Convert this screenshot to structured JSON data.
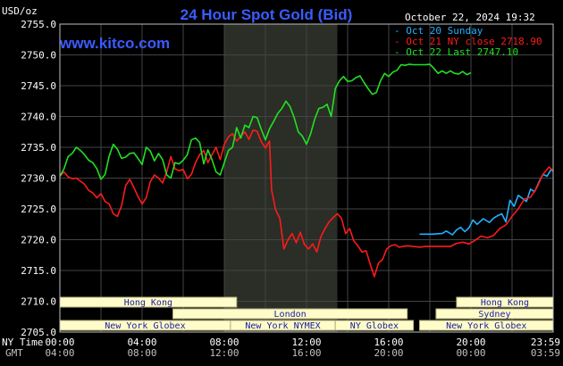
{
  "chart_data": {
    "type": "line",
    "title": "24 Hour Spot Gold (Bid)",
    "watermark": "www.kitco.com",
    "timestamp": "October 22, 2024 19:32",
    "yunit": "USD/oz",
    "ylim": [
      2705,
      2755
    ],
    "yticks": [
      "2755.0",
      "2750.0",
      "2745.0",
      "2740.0",
      "2735.0",
      "2730.0",
      "2725.0",
      "2720.0",
      "2715.0",
      "2710.0",
      "2705.0"
    ],
    "xlim": [
      0,
      24
    ],
    "xtick_hours": [
      0,
      4,
      8,
      12,
      16,
      20,
      24
    ],
    "xticks_ny": [
      "00:00",
      "04:00",
      "08:00",
      "12:00",
      "16:00",
      "20:00",
      "23:59"
    ],
    "xticks_gmt": [
      "04:00",
      "08:00",
      "12:00",
      "16:00",
      "20:00",
      "00:00",
      "03:59"
    ],
    "row_label_ny": "NY Time",
    "row_label_gmt": "GMT",
    "highlight_range": [
      8,
      13.5
    ],
    "grid": true,
    "legend_position": "top-right",
    "colors": {
      "background": "#000000",
      "grid": "#444444",
      "axis": "#c0c0c0",
      "text": "#ffffff",
      "title": "#3a5cff",
      "watermark": "#3a5cff",
      "shade": "#2a2e26",
      "session_fill": "#fefcc8",
      "session_text": "#1a1aa0"
    },
    "series": [
      {
        "name": "Oct 20 Sunday",
        "color": "#22b0ff",
        "x": [
          17.5,
          18.1,
          18.6,
          18.8,
          19.1,
          19.3,
          19.5,
          19.7,
          19.9,
          20.1,
          20.3,
          20.6,
          20.9,
          21.1,
          21.3,
          21.5,
          21.7,
          21.9,
          22.1,
          22.3,
          22.5,
          22.7,
          22.9,
          23.1,
          23.3,
          23.5,
          23.7,
          23.9,
          24.0
        ],
        "values": [
          2720.9,
          2720.9,
          2721.0,
          2721.4,
          2720.8,
          2721.6,
          2722.0,
          2721.3,
          2721.9,
          2723.2,
          2722.5,
          2723.4,
          2722.8,
          2723.5,
          2723.9,
          2724.2,
          2722.9,
          2726.4,
          2725.4,
          2727.2,
          2726.7,
          2726.2,
          2728.2,
          2727.8,
          2729.3,
          2730.6,
          2730.3,
          2731.4,
          2731.1
        ]
      },
      {
        "name": "Oct 21 NY close 2718.90",
        "color": "#ff1a1a",
        "x": [
          0.0,
          0.2,
          0.4,
          0.6,
          0.8,
          1.0,
          1.2,
          1.4,
          1.6,
          1.8,
          2.0,
          2.2,
          2.4,
          2.6,
          2.8,
          3.0,
          3.2,
          3.4,
          3.6,
          3.8,
          4.0,
          4.2,
          4.4,
          4.6,
          4.8,
          5.0,
          5.2,
          5.4,
          5.6,
          5.8,
          6.0,
          6.2,
          6.4,
          6.6,
          6.8,
          7.0,
          7.2,
          7.4,
          7.6,
          7.8,
          8.0,
          8.2,
          8.4,
          8.6,
          8.8,
          9.0,
          9.2,
          9.4,
          9.6,
          9.8,
          10.0,
          10.2,
          10.3,
          10.5,
          10.7,
          10.9,
          11.1,
          11.3,
          11.5,
          11.7,
          11.9,
          12.1,
          12.3,
          12.5,
          12.7,
          12.9,
          13.1,
          13.3,
          13.5,
          13.7,
          13.9,
          14.1,
          14.3,
          14.5,
          14.7,
          14.9,
          15.1,
          15.3,
          15.5,
          15.7,
          15.9,
          16.1,
          16.3,
          16.5,
          16.7,
          16.9,
          17.2,
          17.5,
          17.8,
          18.1,
          18.4,
          18.7,
          19.0,
          19.3,
          19.6,
          19.9,
          20.2,
          20.5,
          20.8,
          21.1,
          21.4,
          21.7,
          22.0,
          22.3,
          22.6,
          22.9,
          23.2,
          23.5,
          23.8,
          24.0
        ],
        "values": [
          2730.3,
          2731.0,
          2730.2,
          2729.9,
          2730.0,
          2729.5,
          2729.0,
          2728.0,
          2727.6,
          2726.8,
          2727.5,
          2726.2,
          2725.8,
          2724.2,
          2723.8,
          2725.5,
          2728.8,
          2729.8,
          2728.5,
          2727.0,
          2725.8,
          2726.8,
          2729.4,
          2730.5,
          2730.0,
          2729.2,
          2731.0,
          2733.5,
          2731.5,
          2731.2,
          2731.4,
          2729.9,
          2730.6,
          2732.5,
          2733.8,
          2734.5,
          2732.5,
          2733.8,
          2735.0,
          2733.0,
          2735.5,
          2736.7,
          2737.2,
          2736.0,
          2736.8,
          2737.5,
          2736.3,
          2737.8,
          2737.6,
          2735.9,
          2734.9,
          2736.0,
          2728.1,
          2724.8,
          2723.5,
          2718.5,
          2720.0,
          2721.0,
          2719.5,
          2721.2,
          2719.2,
          2718.5,
          2719.3,
          2718.0,
          2720.5,
          2721.8,
          2722.9,
          2723.6,
          2724.2,
          2723.5,
          2721.0,
          2721.8,
          2719.8,
          2719.0,
          2718.0,
          2718.2,
          2716.0,
          2714.0,
          2716.2,
          2716.8,
          2718.5,
          2719.0,
          2719.2,
          2718.8,
          2718.9,
          2719.0,
          2718.9,
          2718.8,
          2718.9,
          2718.9,
          2718.9,
          2718.9,
          2718.9,
          2719.4,
          2719.6,
          2719.3,
          2719.9,
          2720.6,
          2720.3,
          2720.7,
          2721.8,
          2722.4,
          2723.8,
          2725.0,
          2726.6,
          2726.9,
          2728.4,
          2730.6,
          2731.8,
          2731.2
        ]
      },
      {
        "name": "Oct 22 Last 2747.10",
        "color": "#22e022",
        "x": [
          0.0,
          0.2,
          0.4,
          0.6,
          0.8,
          1.0,
          1.2,
          1.4,
          1.6,
          1.8,
          2.0,
          2.2,
          2.4,
          2.6,
          2.8,
          3.0,
          3.2,
          3.4,
          3.6,
          3.8,
          4.0,
          4.2,
          4.4,
          4.6,
          4.8,
          5.0,
          5.2,
          5.4,
          5.6,
          5.8,
          6.0,
          6.2,
          6.4,
          6.6,
          6.8,
          7.0,
          7.2,
          7.4,
          7.6,
          7.8,
          8.0,
          8.2,
          8.4,
          8.6,
          8.8,
          9.0,
          9.2,
          9.4,
          9.6,
          9.8,
          10.0,
          10.2,
          10.4,
          10.6,
          10.8,
          11.0,
          11.2,
          11.4,
          11.6,
          11.8,
          12.0,
          12.2,
          12.4,
          12.6,
          12.8,
          13.0,
          13.2,
          13.4,
          13.6,
          13.8,
          14.0,
          14.2,
          14.4,
          14.6,
          14.8,
          15.0,
          15.2,
          15.4,
          15.6,
          15.8,
          16.0,
          16.2,
          16.4,
          16.6,
          16.8,
          17.0,
          17.2,
          17.4,
          17.6,
          17.8,
          18.0,
          18.2,
          18.4,
          18.6,
          18.8,
          19.0,
          19.2,
          19.4,
          19.6,
          19.8,
          20.0
        ],
        "values": [
          2730.3,
          2731.5,
          2733.5,
          2734.0,
          2735.0,
          2734.5,
          2733.8,
          2732.9,
          2732.5,
          2731.5,
          2729.8,
          2730.6,
          2733.6,
          2735.5,
          2734.7,
          2733.2,
          2733.4,
          2734.0,
          2734.1,
          2733.2,
          2732.2,
          2735.0,
          2734.4,
          2732.8,
          2734.0,
          2733.0,
          2730.5,
          2730.0,
          2732.5,
          2732.3,
          2732.9,
          2733.8,
          2736.2,
          2736.5,
          2735.8,
          2732.3,
          2734.6,
          2733.0,
          2731.0,
          2730.5,
          2732.5,
          2734.5,
          2735.0,
          2738.2,
          2736.5,
          2738.6,
          2738.2,
          2740.0,
          2739.8,
          2737.9,
          2736.2,
          2738.0,
          2739.2,
          2740.5,
          2741.3,
          2742.5,
          2741.6,
          2739.8,
          2737.5,
          2736.8,
          2735.5,
          2737.2,
          2739.6,
          2741.3,
          2741.5,
          2742.0,
          2740.0,
          2744.5,
          2745.8,
          2746.5,
          2745.7,
          2745.8,
          2746.3,
          2746.6,
          2745.5,
          2744.5,
          2743.6,
          2743.9,
          2745.8,
          2747.0,
          2746.5,
          2747.2,
          2747.5,
          2748.4,
          2748.3,
          2748.5,
          2748.4,
          2748.4,
          2748.4,
          2748.4,
          2748.5,
          2747.8,
          2747.0,
          2747.4,
          2747.0,
          2747.4,
          2747.0,
          2746.9,
          2747.3,
          2746.8,
          2747.1
        ]
      }
    ]
  },
  "sessions": [
    {
      "label": "Hong Kong",
      "start": 0.0,
      "end": 8.6,
      "row": 0,
      "clip_right": false
    },
    {
      "label": "London",
      "start": 5.5,
      "end": 16.9,
      "row": 1,
      "clip_right": true
    },
    {
      "label": "New York Globex",
      "start": 0.0,
      "end": 8.3,
      "row": 2,
      "clip_right": false
    },
    {
      "label": "New York NYMEX",
      "start": 8.3,
      "end": 13.4,
      "row": 2,
      "clip_right": false
    },
    {
      "label": "NY Globex",
      "start": 13.4,
      "end": 17.2,
      "row": 2,
      "clip_right": false
    },
    {
      "label": "Hong Kong",
      "start": 19.3,
      "end": 24.0,
      "row": 0,
      "clip_right": false
    },
    {
      "label": "Sydney",
      "start": 18.3,
      "end": 24.0,
      "row": 1,
      "clip_right": false
    },
    {
      "label": "New York Globex",
      "start": 17.5,
      "end": 24.0,
      "row": 2,
      "clip_right": false
    }
  ]
}
